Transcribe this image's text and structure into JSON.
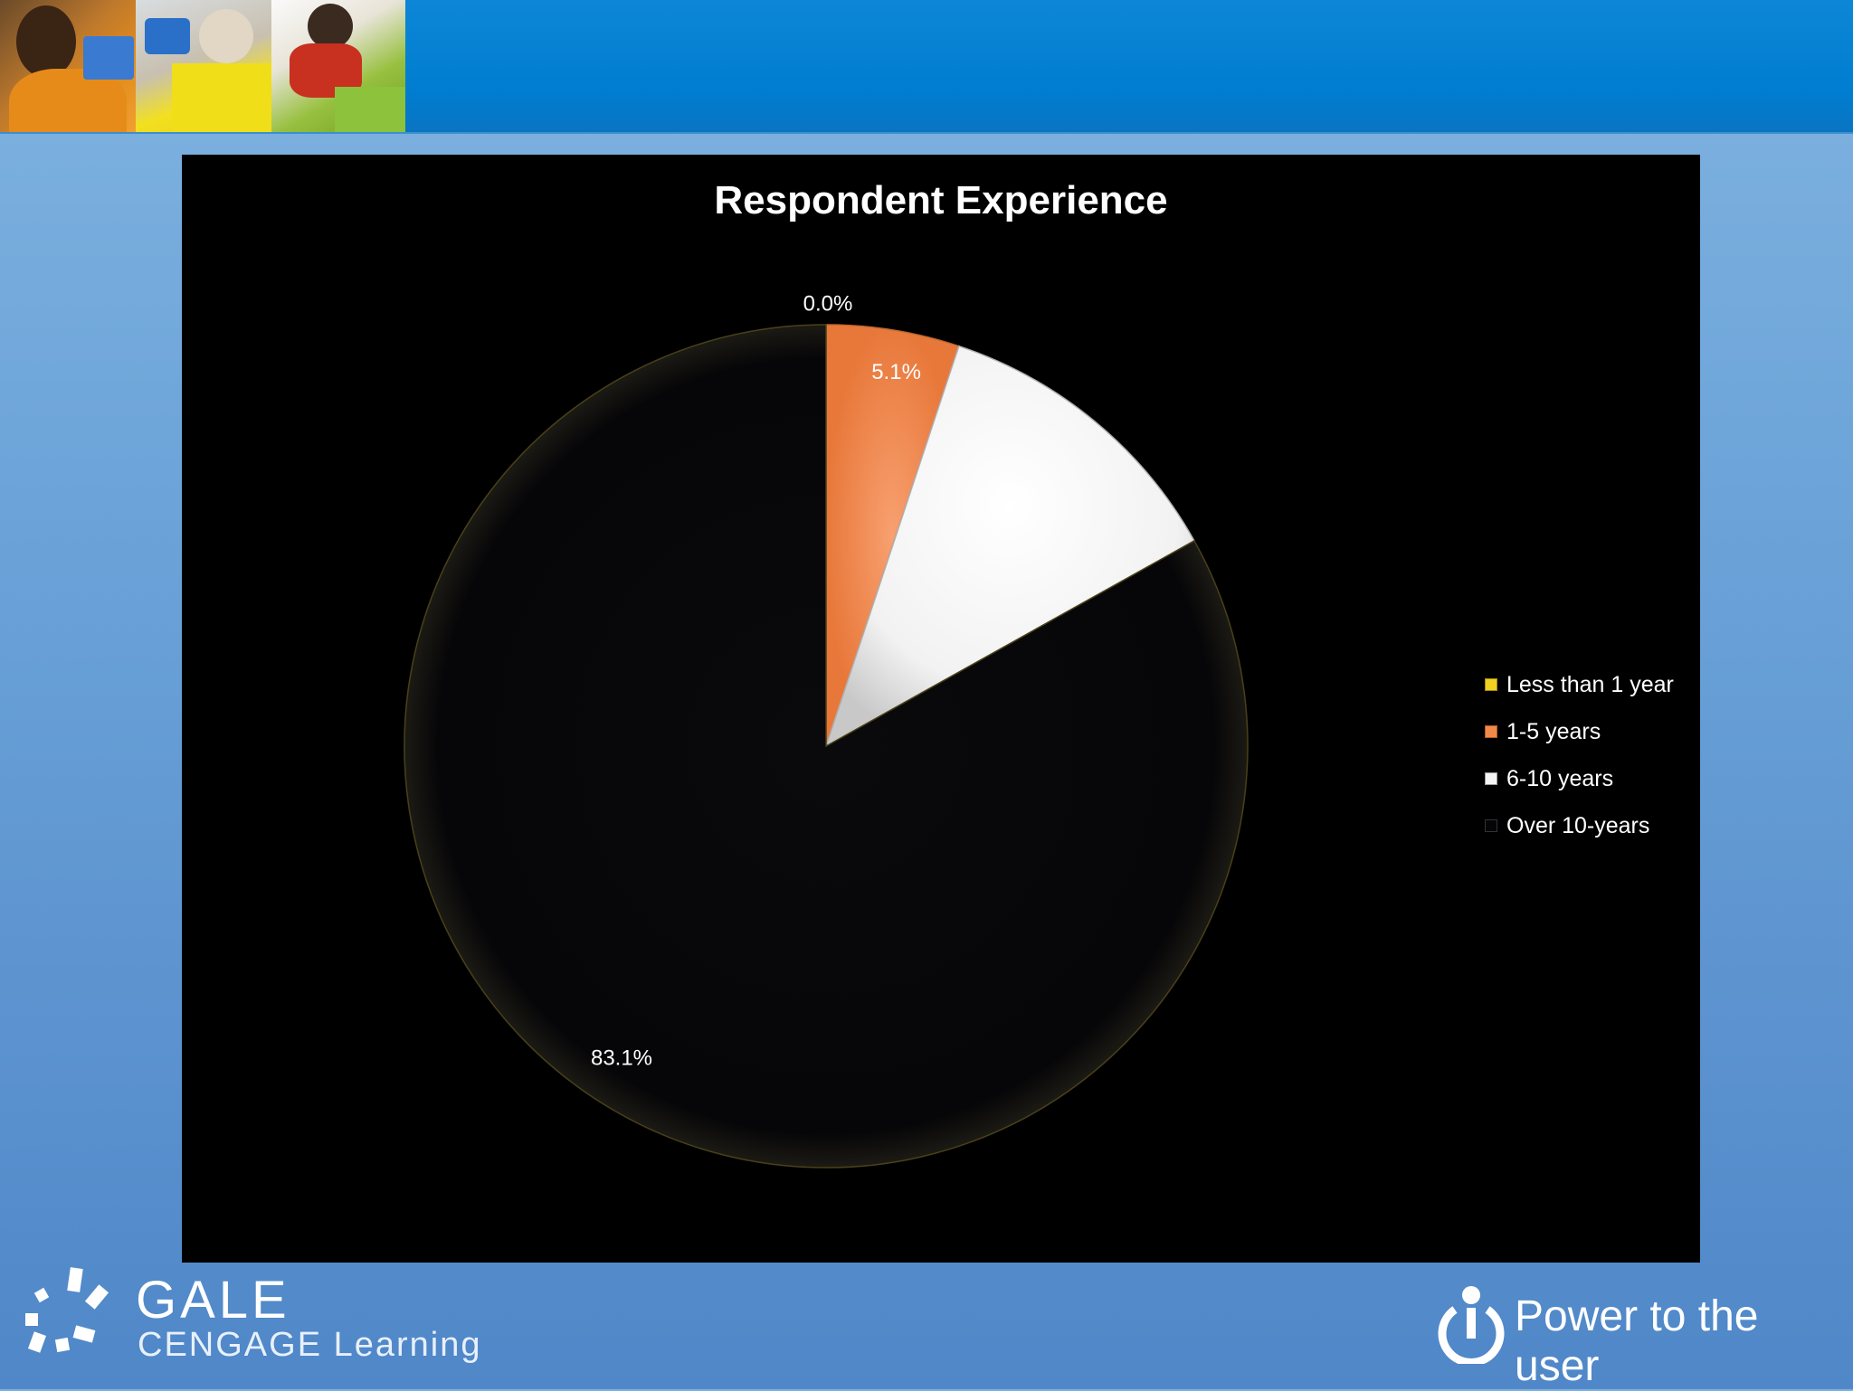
{
  "chart_data": {
    "type": "pie",
    "title": "Respondent Experience",
    "categories": [
      "Less than 1 year",
      "1-5 years",
      "6-10 years",
      "Over 10-years"
    ],
    "values": [
      0.0,
      5.1,
      11.8,
      83.1
    ],
    "data_labels": [
      "0.0%",
      "5.1%",
      "",
      "83.1%"
    ],
    "colors": [
      "#f0d020",
      "#f08a4a",
      "#f4f4f4",
      "#050507"
    ],
    "legend_position": "right"
  },
  "footer": {
    "brand_name": "GALE",
    "brand_sub": "CENGAGE Learning",
    "tagline": "Power to the user"
  },
  "colors": {
    "header_band": "#007dd0",
    "chart_background": "#000000"
  }
}
